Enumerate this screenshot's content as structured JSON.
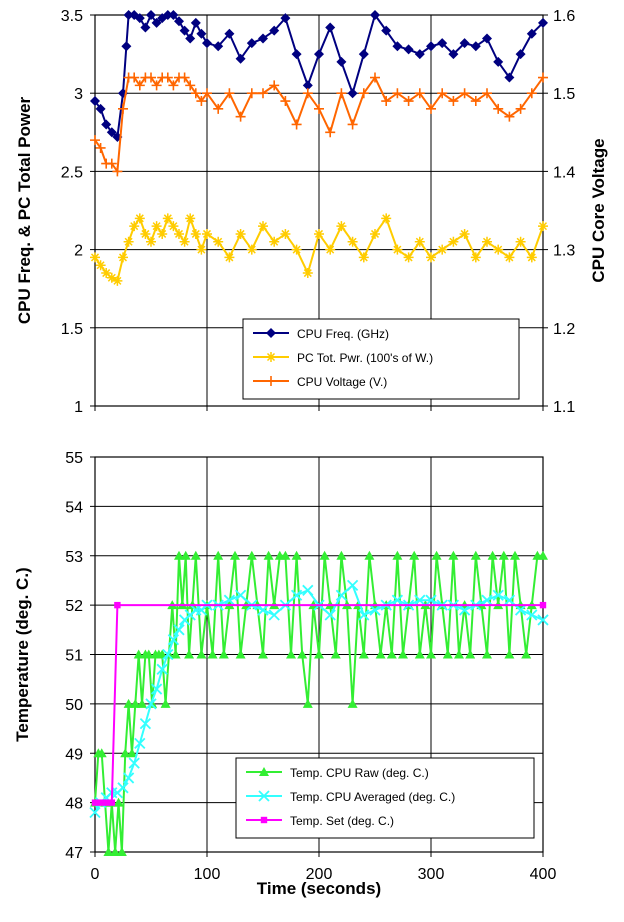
{
  "chart_data": [
    {
      "type": "line",
      "title": "",
      "xlabel": "",
      "ylabel": "CPU Freq. & PC Total Power",
      "y2label": "CPU Core Voltage",
      "xlim": [
        0,
        400
      ],
      "ylim": [
        1,
        3.5
      ],
      "y2lim": [
        1.1,
        1.6
      ],
      "x_ticks": [],
      "y_ticks": [
        "1",
        "1.5",
        "2",
        "2.5",
        "3",
        "3.5"
      ],
      "y2_ticks": [
        "1.1",
        "1.2",
        "1.3",
        "1.4",
        "1.5",
        "1.6"
      ],
      "grid": true,
      "legend_position": "bottom-right",
      "series": [
        {
          "name": "CPU Freq. (GHz)",
          "axis": "left",
          "color": "#000080",
          "marker": "diamond",
          "x": [
            0,
            5,
            10,
            15,
            20,
            25,
            28,
            30,
            35,
            40,
            45,
            50,
            55,
            60,
            65,
            70,
            75,
            80,
            85,
            90,
            95,
            100,
            110,
            120,
            130,
            140,
            150,
            160,
            170,
            180,
            190,
            200,
            210,
            220,
            230,
            240,
            250,
            260,
            270,
            280,
            290,
            300,
            310,
            320,
            330,
            340,
            350,
            360,
            370,
            380,
            390,
            400
          ],
          "values": [
            2.95,
            2.9,
            2.8,
            2.75,
            2.72,
            3.0,
            3.3,
            3.5,
            3.5,
            3.48,
            3.42,
            3.5,
            3.45,
            3.48,
            3.5,
            3.5,
            3.46,
            3.4,
            3.35,
            3.45,
            3.38,
            3.32,
            3.3,
            3.38,
            3.22,
            3.32,
            3.35,
            3.4,
            3.48,
            3.25,
            3.05,
            3.25,
            3.42,
            3.2,
            3.0,
            3.25,
            3.5,
            3.4,
            3.3,
            3.28,
            3.25,
            3.3,
            3.32,
            3.25,
            3.32,
            3.3,
            3.35,
            3.2,
            3.1,
            3.25,
            3.38,
            3.45
          ]
        },
        {
          "name": "PC Tot. Pwr. (100's of W.)",
          "axis": "left",
          "color": "#ffcc00",
          "marker": "star",
          "x": [
            0,
            5,
            10,
            15,
            20,
            25,
            30,
            35,
            40,
            45,
            50,
            55,
            60,
            65,
            70,
            75,
            80,
            85,
            90,
            95,
            100,
            110,
            120,
            130,
            140,
            150,
            160,
            170,
            180,
            190,
            200,
            210,
            220,
            230,
            240,
            250,
            260,
            270,
            280,
            290,
            300,
            310,
            320,
            330,
            340,
            350,
            360,
            370,
            380,
            390,
            400
          ],
          "values": [
            1.95,
            1.9,
            1.85,
            1.82,
            1.8,
            1.95,
            2.05,
            2.15,
            2.2,
            2.1,
            2.05,
            2.15,
            2.1,
            2.2,
            2.15,
            2.1,
            2.05,
            2.2,
            2.1,
            2.0,
            2.1,
            2.05,
            1.95,
            2.1,
            2.0,
            2.15,
            2.05,
            2.1,
            2.0,
            1.85,
            2.1,
            2.0,
            2.15,
            2.05,
            1.95,
            2.1,
            2.2,
            2.0,
            1.95,
            2.05,
            1.95,
            2.0,
            2.05,
            2.1,
            1.95,
            2.05,
            2.0,
            1.95,
            2.05,
            1.95,
            2.15
          ]
        },
        {
          "name": "CPU Voltage (V.)",
          "axis": "right",
          "color": "#ff6600",
          "marker": "plus",
          "x": [
            0,
            5,
            10,
            15,
            20,
            25,
            30,
            35,
            40,
            45,
            50,
            55,
            60,
            65,
            70,
            75,
            80,
            85,
            90,
            95,
            100,
            110,
            120,
            130,
            140,
            150,
            160,
            170,
            180,
            190,
            200,
            210,
            220,
            230,
            240,
            250,
            260,
            270,
            280,
            290,
            300,
            310,
            320,
            330,
            340,
            350,
            360,
            370,
            380,
            390,
            400
          ],
          "values": [
            1.44,
            1.43,
            1.41,
            1.41,
            1.4,
            1.48,
            1.52,
            1.52,
            1.51,
            1.52,
            1.52,
            1.51,
            1.52,
            1.52,
            1.51,
            1.52,
            1.52,
            1.51,
            1.5,
            1.49,
            1.5,
            1.48,
            1.5,
            1.47,
            1.5,
            1.5,
            1.51,
            1.49,
            1.46,
            1.5,
            1.48,
            1.45,
            1.5,
            1.46,
            1.5,
            1.52,
            1.49,
            1.5,
            1.49,
            1.5,
            1.48,
            1.5,
            1.49,
            1.5,
            1.49,
            1.5,
            1.48,
            1.47,
            1.48,
            1.5,
            1.52
          ]
        }
      ]
    },
    {
      "type": "line",
      "title": "",
      "xlabel": "Time (seconds)",
      "ylabel": "Temperature (deg. C.)",
      "xlim": [
        0,
        400
      ],
      "ylim": [
        47,
        55
      ],
      "x_ticks": [
        "0",
        "100",
        "200",
        "300",
        "400"
      ],
      "y_ticks": [
        "47",
        "48",
        "49",
        "50",
        "51",
        "52",
        "53",
        "54",
        "55"
      ],
      "grid": true,
      "legend_position": "bottom-right",
      "series": [
        {
          "name": "Temp. CPU Raw (deg. C.)",
          "color": "#33ee33",
          "marker": "triangle",
          "x": [
            0,
            3,
            6,
            9,
            12,
            15,
            18,
            21,
            24,
            27,
            30,
            33,
            36,
            39,
            42,
            45,
            48,
            51,
            54,
            57,
            60,
            63,
            66,
            69,
            72,
            75,
            78,
            81,
            84,
            87,
            90,
            95,
            100,
            105,
            110,
            115,
            120,
            125,
            130,
            135,
            140,
            145,
            150,
            155,
            160,
            165,
            170,
            175,
            180,
            185,
            190,
            195,
            200,
            205,
            210,
            215,
            220,
            225,
            230,
            235,
            240,
            245,
            250,
            255,
            260,
            265,
            270,
            275,
            280,
            285,
            290,
            295,
            300,
            305,
            310,
            315,
            320,
            325,
            330,
            335,
            340,
            345,
            350,
            355,
            360,
            365,
            370,
            375,
            380,
            385,
            390,
            395,
            400
          ],
          "values": [
            48,
            49,
            49,
            48,
            47,
            48,
            47,
            48,
            47,
            49,
            50,
            49,
            50,
            51,
            50,
            51,
            51,
            50,
            51,
            51,
            51,
            50,
            51,
            52,
            51,
            53,
            52,
            53,
            51,
            52,
            53,
            51,
            52,
            51,
            53,
            51,
            52,
            53,
            51,
            52,
            53,
            52,
            51,
            53,
            52,
            53,
            53,
            51,
            53,
            51,
            50,
            52,
            51,
            53,
            52,
            51,
            53,
            52,
            50,
            52,
            51,
            53,
            52,
            51,
            52,
            51,
            53,
            51,
            52,
            53,
            51,
            52,
            51,
            53,
            52,
            51,
            53,
            51,
            52,
            51,
            53,
            52,
            51,
            53,
            52,
            53,
            51,
            53,
            52,
            51,
            52,
            53,
            53
          ]
        },
        {
          "name": "Temp. CPU Averaged (deg. C.)",
          "color": "#33ffff",
          "marker": "x",
          "x": [
            0,
            5,
            10,
            15,
            20,
            25,
            30,
            35,
            40,
            45,
            50,
            55,
            60,
            65,
            70,
            75,
            80,
            85,
            90,
            95,
            100,
            110,
            120,
            130,
            140,
            150,
            160,
            170,
            180,
            190,
            200,
            210,
            220,
            230,
            240,
            250,
            260,
            270,
            280,
            290,
            300,
            310,
            320,
            330,
            340,
            350,
            360,
            370,
            380,
            390,
            400
          ],
          "values": [
            47.8,
            48.0,
            48.1,
            48.2,
            48.2,
            48.3,
            48.5,
            48.8,
            49.2,
            49.6,
            50.0,
            50.3,
            50.7,
            51.0,
            51.3,
            51.5,
            51.7,
            51.8,
            51.9,
            51.9,
            52.0,
            52.0,
            52.1,
            52.2,
            52.0,
            51.9,
            51.8,
            52.0,
            52.2,
            52.3,
            52.0,
            51.8,
            52.2,
            52.4,
            51.8,
            51.9,
            52.0,
            52.1,
            52.0,
            52.1,
            52.1,
            52.0,
            52.0,
            51.9,
            52.0,
            52.1,
            52.2,
            52.1,
            51.9,
            51.8,
            51.7
          ]
        },
        {
          "name": "Temp. Set (deg. C.)",
          "color": "#ff00ff",
          "marker": "square",
          "x": [
            0,
            5,
            10,
            15,
            20,
            400
          ],
          "values": [
            48,
            48,
            48,
            48,
            52,
            52
          ]
        }
      ]
    }
  ]
}
